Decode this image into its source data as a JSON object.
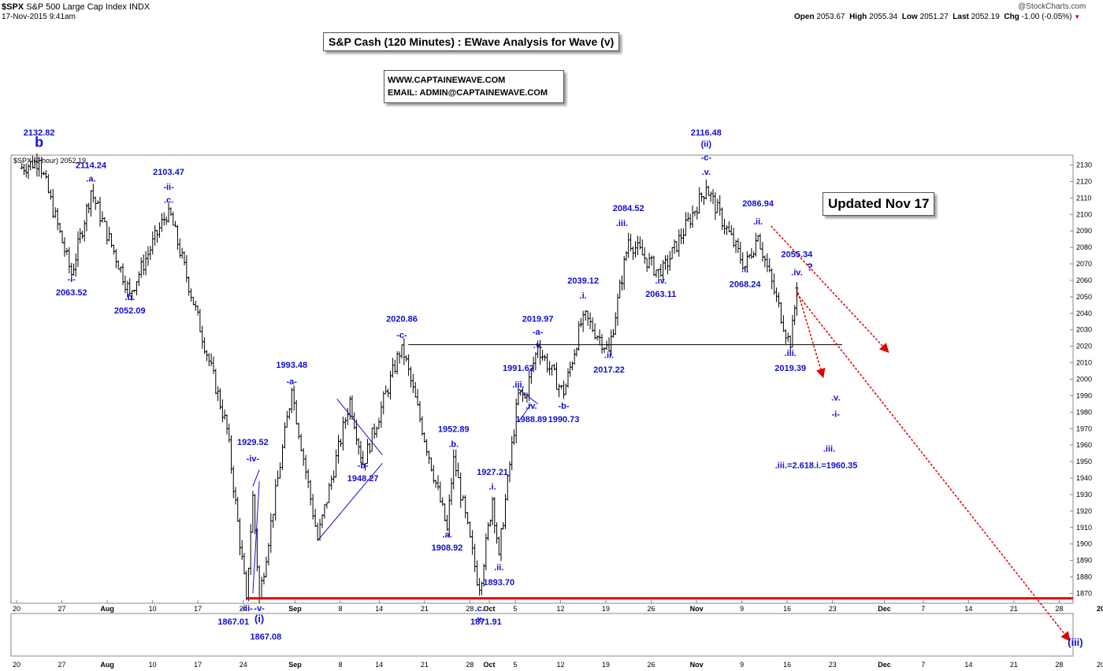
{
  "header": {
    "symbol": "$SPX",
    "index_name": "S&P 500 Large Cap Index",
    "exchange": "INDX",
    "date_time": "17-Nov-2015 9:41am",
    "watermark": "@StockCharts.com",
    "quote": {
      "open_label": "Open",
      "open": "2053.67",
      "high_label": "High",
      "high": "2055.34",
      "low_label": "Low",
      "low": "2051.27",
      "last_label": "Last",
      "last": "2052.19",
      "chg_label": "Chg",
      "chg": "-1.00 (-0.05%)",
      "down_arrow": "▼"
    }
  },
  "boxes": {
    "title": "S&P Cash (120 Minutes) : EWave Analysis for Wave (v)",
    "website": "WWW.CAPTAINEWAVE.COM",
    "email": "EMAIL: ADMIN@CAPTAINEWAVE.COM",
    "updated": "Updated Nov 17"
  },
  "chart_data": {
    "type": "ohlc",
    "series_label": "$SPX (2 hour) 2052.19",
    "ylim": [
      1864,
      2136
    ],
    "y_ticks": [
      1870,
      1880,
      1890,
      1900,
      1910,
      1920,
      1930,
      1940,
      1950,
      1960,
      1970,
      1980,
      1990,
      2000,
      2010,
      2020,
      2030,
      2040,
      2050,
      2060,
      2070,
      2080,
      2090,
      2100,
      2110,
      2120,
      2130
    ],
    "x_ticks": [
      "20",
      "27",
      "Aug",
      "10",
      "17",
      "24",
      "Sep",
      "8",
      "14",
      "21",
      "28",
      "Oct",
      "5",
      "12",
      "19",
      "26",
      "Nov",
      "9",
      "16",
      "23",
      "Dec",
      "7",
      "14",
      "21",
      "28",
      "2016"
    ],
    "x_ticks_lower": [
      "20",
      "27",
      "Aug",
      "10",
      "17",
      "24",
      "Sep",
      "8",
      "14",
      "21",
      "28",
      "Oct",
      "5",
      "12",
      "19",
      "26",
      "Nov",
      "9",
      "16",
      "23",
      "Dec",
      "7",
      "14",
      "21",
      "28",
      "2016"
    ],
    "pivots": [
      [
        "2015-07-20",
        2128
      ],
      [
        "2015-07-23",
        2132.82
      ],
      [
        "2015-07-28",
        2063.52
      ],
      [
        "2015-07-31",
        2114.24
      ],
      [
        "2015-08-06",
        2052.09
      ],
      [
        "2015-08-12",
        2103.47
      ],
      [
        "2015-08-21",
        1970
      ],
      [
        "2015-08-24",
        1867.01
      ],
      [
        "2015-08-25",
        1929.52
      ],
      [
        "2015-08-26",
        1867.08
      ],
      [
        "2015-08-31",
        1993.48
      ],
      [
        "2015-09-04",
        1903
      ],
      [
        "2015-09-09",
        1988
      ],
      [
        "2015-09-11",
        1948.27
      ],
      [
        "2015-09-17",
        2020.86
      ],
      [
        "2015-09-24",
        1908.92
      ],
      [
        "2015-09-25",
        1952.89
      ],
      [
        "2015-09-29",
        1871.91
      ],
      [
        "2015-10-01",
        1927.21
      ],
      [
        "2015-10-02",
        1893.7
      ],
      [
        "2015-10-05",
        1991.62
      ],
      [
        "2015-10-06",
        1988.89
      ],
      [
        "2015-10-08",
        2019.97
      ],
      [
        "2015-10-12",
        1990.73
      ],
      [
        "2015-10-15",
        2039.12
      ],
      [
        "2015-10-19",
        2017.22
      ],
      [
        "2015-10-22",
        2084.52
      ],
      [
        "2015-10-27",
        2063.11
      ],
      [
        "2015-11-03",
        2116.48
      ],
      [
        "2015-11-09",
        2068.24
      ],
      [
        "2015-11-11",
        2086.94
      ],
      [
        "2015-11-16",
        2019.39
      ],
      [
        "2015-11-17",
        2055.34
      ],
      [
        "2015-11-17",
        2052.19
      ]
    ],
    "horizontal_lines": [
      {
        "from": "2015-09-18",
        "to": "2015-11-24",
        "y": 2021,
        "color": "#000000"
      },
      {
        "from": "2015-08-24",
        "to": "2016-01-01",
        "y": 1867,
        "color": "#e00000"
      }
    ],
    "trendlines": [
      {
        "from": [
          "2015-08-25",
          1935
        ],
        "to": [
          "2015-08-26",
          1945
        ]
      },
      {
        "from": [
          "2015-08-25",
          1870
        ],
        "to": [
          "2015-08-26",
          1938
        ]
      },
      {
        "from": [
          "2015-09-04",
          1902
        ],
        "to": [
          "2015-09-14",
          1949
        ]
      },
      {
        "from": [
          "2015-09-07",
          1988
        ],
        "to": [
          "2015-09-14",
          1954
        ]
      },
      {
        "from": [
          "2015-10-05",
          1974
        ],
        "to": [
          "2015-10-07",
          1985
        ]
      },
      {
        "from": [
          "2015-10-05",
          1994
        ],
        "to": [
          "2015-10-08",
          1985
        ]
      }
    ],
    "projections": [
      {
        "from": [
          "2015-11-13",
          2093
        ],
        "to": [
          "2015-12-01",
          2017
        ],
        "color": "#e00000"
      },
      {
        "from": [
          "2015-11-17",
          2055
        ],
        "to": [
          "2015-11-21",
          2002
        ],
        "color": "#e00000"
      },
      {
        "from": [
          "2015-11-17",
          2052
        ],
        "to": [
          "2015-12-29",
          1842
        ],
        "color": "#e00000"
      }
    ],
    "labels": [
      {
        "text": "2132.82",
        "x": "2015-07-23",
        "y": 2149
      },
      {
        "text": "b",
        "x": "2015-07-23",
        "y": 2141,
        "size": "lg"
      },
      {
        "text": "2114.24",
        "x": "2015-07-31",
        "y": 2128
      },
      {
        "text": ".a.",
        "x": "2015-07-31",
        "y": 2120
      },
      {
        "text": "-i-",
        "x": "2015-07-28",
        "y": 2059
      },
      {
        "text": "2063.52",
        "x": "2015-07-28",
        "y": 2051
      },
      {
        "text": ".b.",
        "x": "2015-08-06",
        "y": 2048
      },
      {
        "text": "2052.09",
        "x": "2015-08-06",
        "y": 2040
      },
      {
        "text": "2103.47",
        "x": "2015-08-12",
        "y": 2124
      },
      {
        "text": "-ii-",
        "x": "2015-08-12",
        "y": 2115
      },
      {
        "text": ".c.",
        "x": "2015-08-12",
        "y": 2107
      },
      {
        "text": "1929.52",
        "x": "2015-08-25",
        "y": 1960
      },
      {
        "text": "-iv-",
        "x": "2015-08-25",
        "y": 1950
      },
      {
        "text": "1993.48",
        "x": "2015-08-31",
        "y": 2007
      },
      {
        "text": "-a-",
        "x": "2015-08-31",
        "y": 1997
      },
      {
        "text": "-b-",
        "x": "2015-09-11",
        "y": 1946
      },
      {
        "text": "1948.27",
        "x": "2015-09-11",
        "y": 1938
      },
      {
        "text": "2020.86",
        "x": "2015-09-17",
        "y": 2035
      },
      {
        "text": "-c-",
        "x": "2015-09-17",
        "y": 2025
      },
      {
        "text": "1952.89",
        "x": "2015-09-25",
        "y": 1968
      },
      {
        "text": ".b.",
        "x": "2015-09-25",
        "y": 1959
      },
      {
        "text": ".a.",
        "x": "2015-09-24",
        "y": 1904
      },
      {
        "text": "1908.92",
        "x": "2015-09-24",
        "y": 1896
      },
      {
        "text": "1927.21",
        "x": "2015-10-01",
        "y": 1942
      },
      {
        "text": ".i.",
        "x": "2015-10-01",
        "y": 1933
      },
      {
        "text": ".ii.",
        "x": "2015-10-02",
        "y": 1884
      },
      {
        "text": "1893.70",
        "x": "2015-10-02",
        "y": 1875
      },
      {
        "text": "1991.62",
        "x": "2015-10-05",
        "y": 2005
      },
      {
        "text": ".iii.",
        "x": "2015-10-05",
        "y": 1995
      },
      {
        "text": ".iv.",
        "x": "2015-10-07",
        "y": 1982
      },
      {
        "text": "1988.89",
        "x": "2015-10-07",
        "y": 1974
      },
      {
        "text": "2019.97",
        "x": "2015-10-08",
        "y": 2035
      },
      {
        "text": "-a-",
        "x": "2015-10-08",
        "y": 2027
      },
      {
        "text": ".v.",
        "x": "2015-10-08",
        "y": 2019
      },
      {
        "text": "-b-",
        "x": "2015-10-12",
        "y": 1982
      },
      {
        "text": "1990.73",
        "x": "2015-10-12",
        "y": 1974
      },
      {
        "text": "2039.12",
        "x": "2015-10-15",
        "y": 2058
      },
      {
        "text": ".i.",
        "x": "2015-10-15",
        "y": 2049
      },
      {
        "text": ".ii.",
        "x": "2015-10-19",
        "y": 2013
      },
      {
        "text": "2017.22",
        "x": "2015-10-19",
        "y": 2004
      },
      {
        "text": "2084.52",
        "x": "2015-10-22",
        "y": 2102
      },
      {
        "text": ".iii.",
        "x": "2015-10-21",
        "y": 2093
      },
      {
        "text": ".iv.",
        "x": "2015-10-27",
        "y": 2058
      },
      {
        "text": "2063.11",
        "x": "2015-10-27",
        "y": 2050
      },
      {
        "text": "2116.48",
        "x": "2015-11-03",
        "y": 2151
      },
      {
        "text": "(ii)",
        "x": "2015-11-03",
        "y": 2141
      },
      {
        "text": "-c-",
        "x": "2015-11-03",
        "y": 2133
      },
      {
        "text": ".v.",
        "x": "2015-11-03",
        "y": 2124
      },
      {
        "text": "2086.94",
        "x": "2015-11-11",
        "y": 2105
      },
      {
        "text": ".ii.",
        "x": "2015-11-11",
        "y": 2094
      },
      {
        "text": ".i.",
        "x": "2015-11-09",
        "y": 2065
      },
      {
        "text": "2068.24",
        "x": "2015-11-09",
        "y": 2056
      },
      {
        "text": "2055.34",
        "x": "2015-11-17",
        "y": 2074
      },
      {
        "text": ".iv.",
        "x": "2015-11-17",
        "y": 2063
      },
      {
        "text": "?",
        "x": "2015-11-19",
        "y": 2066,
        "size": "md"
      },
      {
        "text": ".iii.",
        "x": "2015-11-16",
        "y": 2014
      },
      {
        "text": "2019.39",
        "x": "2015-11-16",
        "y": 2005
      },
      {
        "text": ".v.",
        "x": "2015-11-23",
        "y": 1987
      },
      {
        "text": "-i-",
        "x": "2015-11-23",
        "y": 1977
      },
      {
        "text": ".iii.",
        "x": "2015-11-22",
        "y": 1956
      },
      {
        "text": ".iii.=2.618.i.=1960.35",
        "x": "2015-11-20",
        "y": 1946
      }
    ],
    "lower_labels": [
      {
        "text": "-iii-",
        "x": "2015-08-24",
        "row": 0
      },
      {
        "text": "-v-",
        "x": "2015-08-26",
        "row": 0
      },
      {
        "text": "(i)",
        "x": "2015-08-26",
        "row": 1,
        "size": "md"
      },
      {
        "text": "1867.01",
        "x": "2015-08-22",
        "row": 2
      },
      {
        "text": "1867.08",
        "x": "2015-08-27",
        "row": 3
      },
      {
        "text": ".c.",
        "x": "2015-09-29",
        "row": 0
      },
      {
        "text": "-x-",
        "x": "2015-09-29",
        "row": 1
      },
      {
        "text": "1871.91",
        "x": "2015-09-30",
        "row": 2
      },
      {
        "text": "(iii)",
        "x": "2015-12-30",
        "row": 4,
        "size": "md"
      }
    ],
    "label_color": "#1010d0",
    "bar_color": "#000000",
    "projection_color": "#e00000"
  }
}
